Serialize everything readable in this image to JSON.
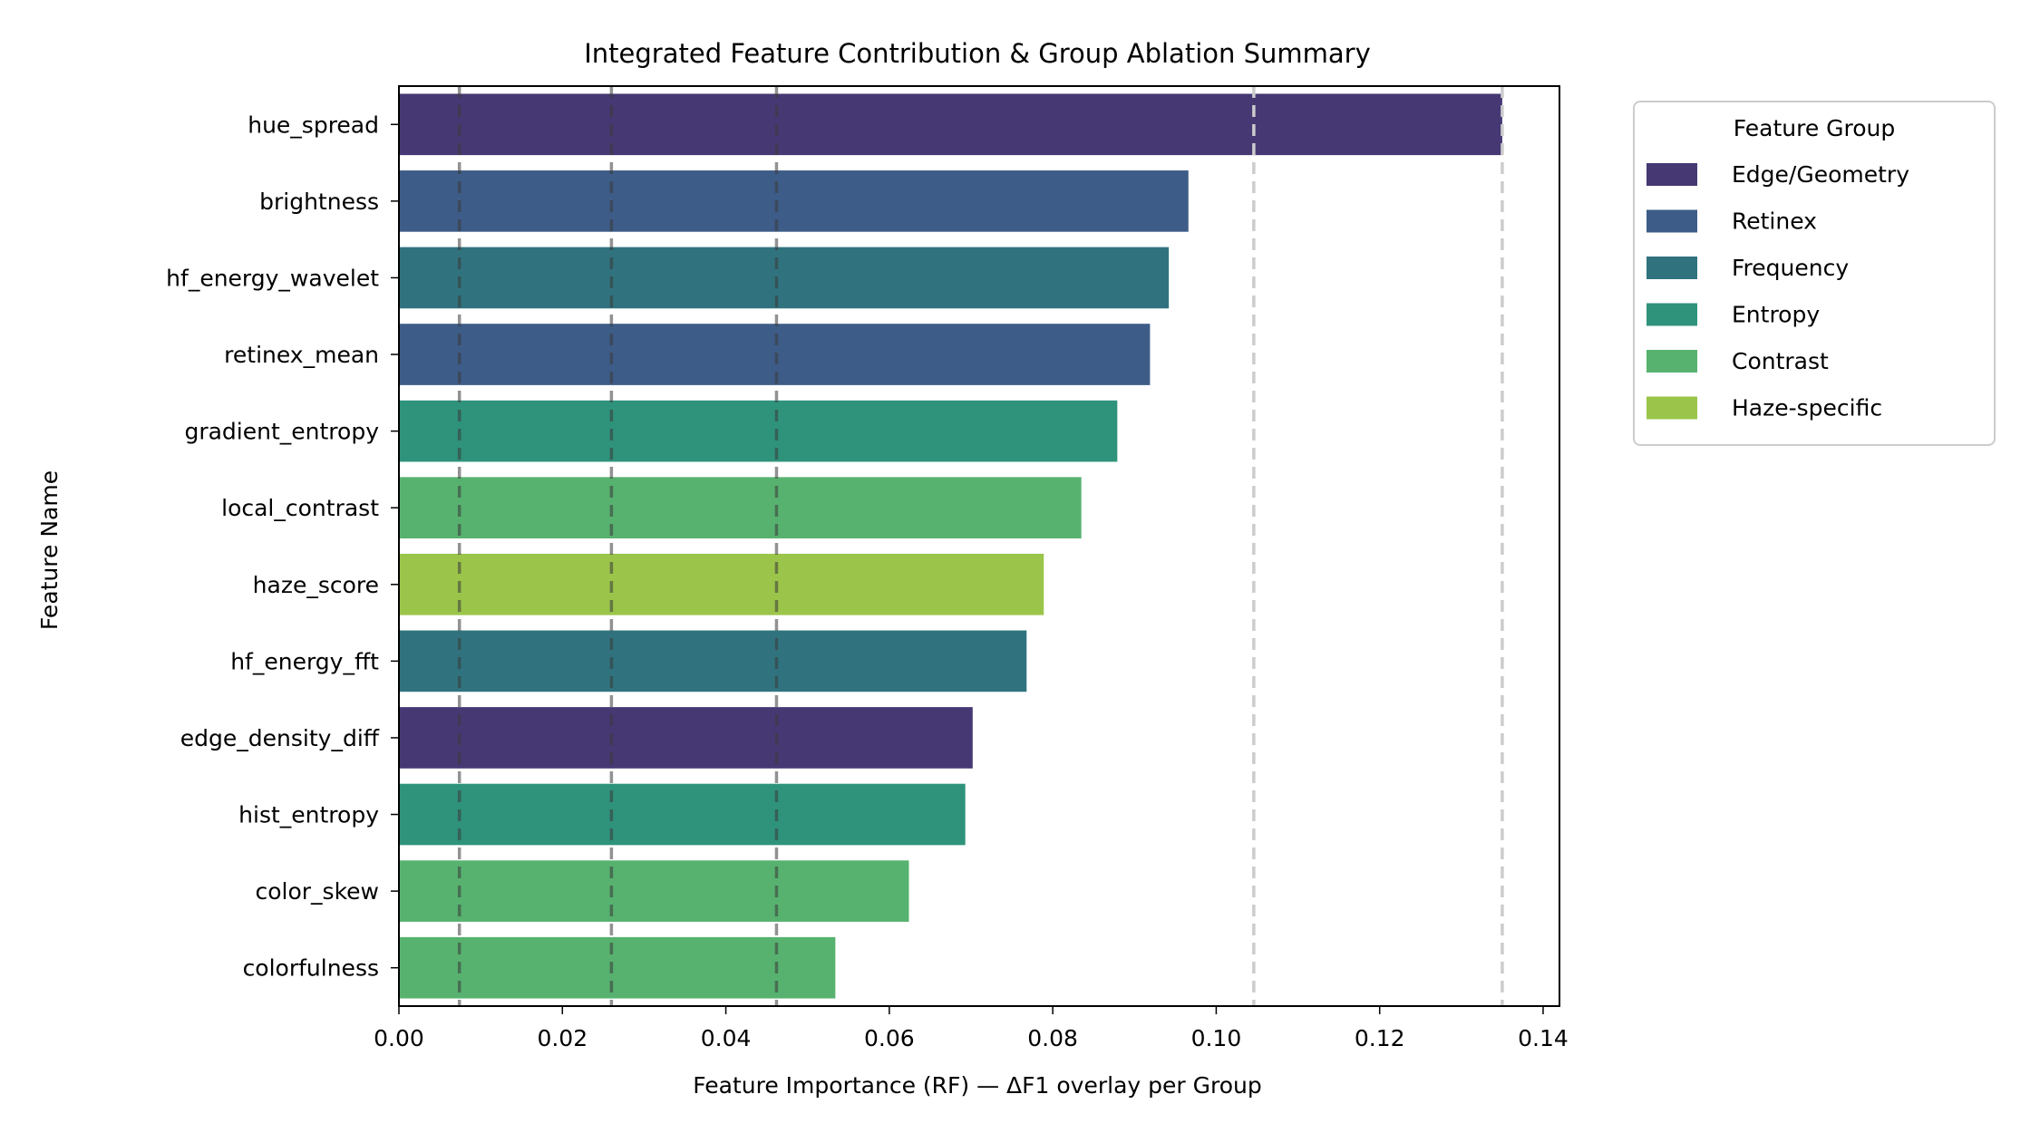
{
  "chart_data": {
    "type": "bar",
    "orientation": "horizontal",
    "title": "Integrated Feature Contribution & Group Ablation Summary",
    "xlabel": "Feature Importance (RF) — ΔF1 overlay per Group",
    "ylabel": "Feature Name",
    "xlim": [
      0,
      0.142
    ],
    "xticks": [
      "0.00",
      "0.02",
      "0.04",
      "0.06",
      "0.08",
      "0.10",
      "0.12",
      "0.14"
    ],
    "grid": false,
    "legend": {
      "title": "Feature Group",
      "placement": "outside-right-top",
      "entries": [
        {
          "name": "Edge/Geometry",
          "color": "#463873"
        },
        {
          "name": "Retinex",
          "color": "#3e5c88"
        },
        {
          "name": "Frequency",
          "color": "#30737f"
        },
        {
          "name": "Entropy",
          "color": "#2f937c"
        },
        {
          "name": "Contrast",
          "color": "#57b26f"
        },
        {
          "name": "Haze-specific",
          "color": "#9bc54a"
        }
      ]
    },
    "categories": [
      "hue_spread",
      "brightness",
      "hf_energy_wavelet",
      "retinex_mean",
      "gradient_entropy",
      "local_contrast",
      "haze_score",
      "hf_energy_fft",
      "edge_density_diff",
      "hist_entropy",
      "color_skew",
      "colorfulness"
    ],
    "values": [
      0.135,
      0.0966,
      0.0942,
      0.0919,
      0.0879,
      0.0835,
      0.0789,
      0.0768,
      0.0702,
      0.0693,
      0.0624,
      0.0534
    ],
    "groups": [
      "Edge/Geometry",
      "Retinex",
      "Frequency",
      "Retinex",
      "Entropy",
      "Contrast",
      "Haze-specific",
      "Frequency",
      "Edge/Geometry",
      "Entropy",
      "Contrast",
      "Contrast"
    ],
    "overlay_lines": {
      "style": "dashed",
      "note_values": [
        0.0074,
        0.026,
        0.0462,
        0.1046,
        0.135
      ],
      "colors": [
        "#3a3a3a",
        "#3a3a3a",
        "#3a3a3a",
        "#cccccc",
        "#cccccc"
      ]
    }
  }
}
